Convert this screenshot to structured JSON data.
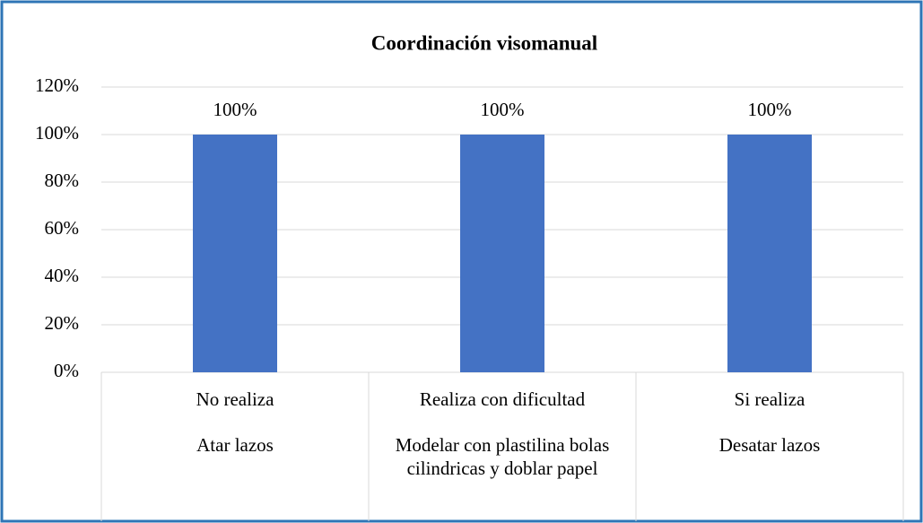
{
  "chart_data": {
    "type": "bar",
    "title": "Coordinación visomanual",
    "categories": [
      "No realiza",
      "Realiza con dificultad",
      "Si realiza"
    ],
    "subcategories": [
      "Atar lazos",
      "Modelar con plastilina bolas cilindricas y doblar papel",
      "Desatar lazos"
    ],
    "values": [
      100,
      100,
      100
    ],
    "value_labels": [
      "100%",
      "100%",
      "100%"
    ],
    "color": "#4472c4",
    "ylim": [
      0,
      120
    ],
    "yticks": [
      {
        "value": 0,
        "label": "0%"
      },
      {
        "value": 20,
        "label": "20%"
      },
      {
        "value": 40,
        "label": "40%"
      },
      {
        "value": 60,
        "label": "60%"
      },
      {
        "value": 80,
        "label": "80%"
      },
      {
        "value": 100,
        "label": "100%"
      },
      {
        "value": 120,
        "label": "120%"
      }
    ],
    "grid": true
  }
}
